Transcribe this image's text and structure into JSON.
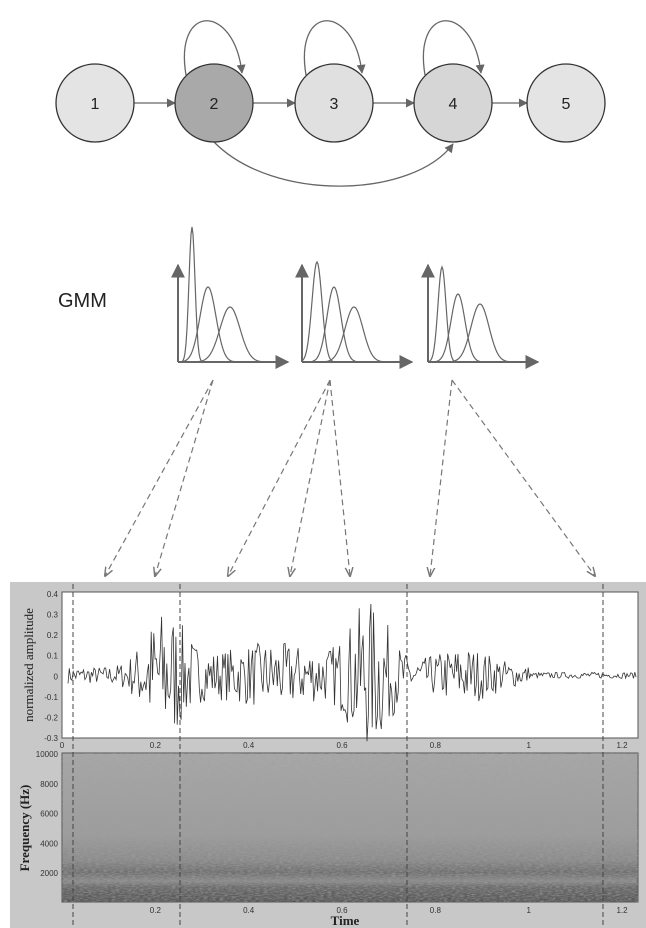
{
  "nodes": [
    {
      "label": "1"
    },
    {
      "label": "2"
    },
    {
      "label": "3"
    },
    {
      "label": "4"
    },
    {
      "label": "5"
    }
  ],
  "gmm_label": "GMM",
  "waveform": {
    "y_label": "normalized amplitude",
    "yticks": [
      "0.4",
      "0.3",
      "0.2",
      "0.1",
      "0",
      "-0.1",
      "-0.2",
      "-0.3"
    ],
    "xticks": [
      "0",
      "0.2",
      "0.4",
      "0.6",
      "0.8",
      "1",
      "1.2"
    ]
  },
  "spectrogram": {
    "y_label": "Frequency (Hz)",
    "yticks": [
      "10000",
      "8000",
      "6000",
      "4000",
      "2000"
    ],
    "x_label": "Time",
    "xticks": [
      "0.2",
      "0.4",
      "0.6",
      "0.8",
      "1",
      "1.2"
    ]
  }
}
